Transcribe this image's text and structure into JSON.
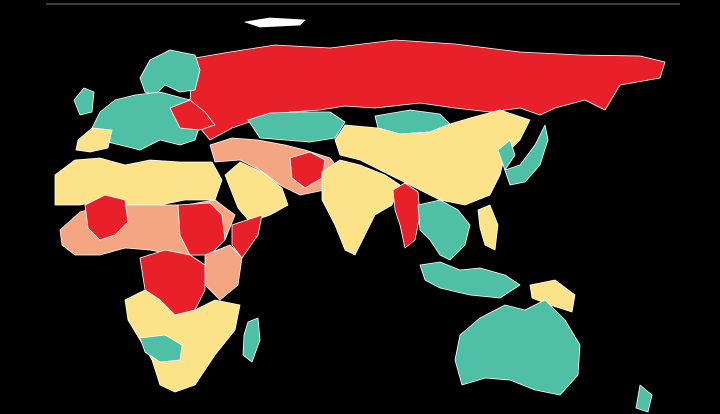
{
  "map": {
    "background": "#000000",
    "colors": {
      "red": "#e8202a",
      "teal": "#4fbfa5",
      "yellow": "#fce38a",
      "salmon": "#f4a582",
      "ice": "#ffffff"
    },
    "regions": [
      {
        "id": "arctic-islands",
        "color": "ice"
      },
      {
        "id": "russia",
        "color": "red"
      },
      {
        "id": "scandinavia",
        "color": "teal"
      },
      {
        "id": "western-europe",
        "color": "teal"
      },
      {
        "id": "uk",
        "color": "teal"
      },
      {
        "id": "iberia",
        "color": "yellow"
      },
      {
        "id": "ukraine-belarus",
        "color": "red"
      },
      {
        "id": "kazakhstan",
        "color": "teal"
      },
      {
        "id": "mongolia",
        "color": "teal"
      },
      {
        "id": "china",
        "color": "yellow"
      },
      {
        "id": "korea-japan",
        "color": "teal"
      },
      {
        "id": "middle-east",
        "color": "salmon"
      },
      {
        "id": "arabia",
        "color": "yellow"
      },
      {
        "id": "afghanistan",
        "color": "red"
      },
      {
        "id": "india",
        "color": "yellow"
      },
      {
        "id": "myanmar",
        "color": "red"
      },
      {
        "id": "southeast-asia",
        "color": "teal"
      },
      {
        "id": "philippines",
        "color": "yellow"
      },
      {
        "id": "indonesia",
        "color": "teal"
      },
      {
        "id": "new-guinea",
        "color": "yellow"
      },
      {
        "id": "australia",
        "color": "teal"
      },
      {
        "id": "new-zealand",
        "color": "teal"
      },
      {
        "id": "north-africa",
        "color": "yellow"
      },
      {
        "id": "sahel",
        "color": "salmon"
      },
      {
        "id": "mali",
        "color": "red"
      },
      {
        "id": "sudan",
        "color": "red"
      },
      {
        "id": "somalia",
        "color": "red"
      },
      {
        "id": "east-africa",
        "color": "salmon"
      },
      {
        "id": "congo",
        "color": "red"
      },
      {
        "id": "southern-africa",
        "color": "yellow"
      },
      {
        "id": "namibia-botswana",
        "color": "teal"
      },
      {
        "id": "madagascar",
        "color": "teal"
      }
    ]
  }
}
